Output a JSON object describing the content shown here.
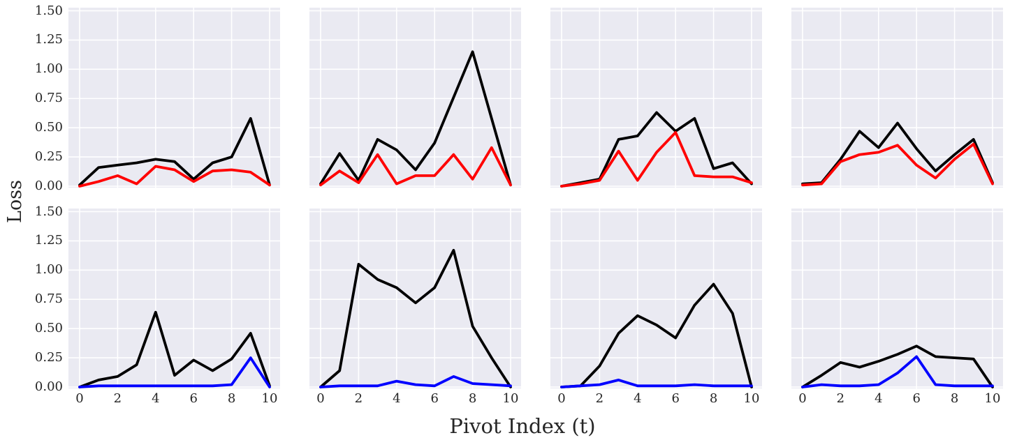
{
  "figure": {
    "background": "#ffffff",
    "axes_background": "#eaeaf2",
    "grid_color": "#ffffff",
    "text_color": "#262626"
  },
  "chart_data": {
    "type": "line",
    "title": "",
    "xlabel": "Pivot Index (t)",
    "ylabel": "Loss",
    "layout": {
      "rows": 2,
      "cols": 4,
      "shared_axes": true,
      "grid": true,
      "legend": "none"
    },
    "x": [
      0,
      1,
      2,
      3,
      4,
      5,
      6,
      7,
      8,
      9,
      10
    ],
    "xticks": [
      0,
      2,
      4,
      6,
      8,
      10
    ],
    "ytick_labels": [
      "0.00",
      "0.25",
      "0.50",
      "0.75",
      "1.00",
      "1.25",
      "1.50"
    ],
    "ytick_values": [
      0,
      0.25,
      0.5,
      0.75,
      1.0,
      1.25,
      1.5
    ],
    "xlim": [
      -0.6,
      10.55
    ],
    "ylim": [
      0,
      1.5
    ],
    "series_colors": {
      "black": "#000000",
      "red": "#ff0000",
      "blue": "#0000ff"
    },
    "subplots": [
      {
        "row": 0,
        "col": 0,
        "series": [
          {
            "name": "black",
            "color": "#000000",
            "values": [
              0.01,
              0.16,
              0.18,
              0.2,
              0.23,
              0.21,
              0.06,
              0.2,
              0.25,
              0.58,
              0.01
            ]
          },
          {
            "name": "red",
            "color": "#ff0000",
            "values": [
              0.0,
              0.04,
              0.09,
              0.02,
              0.17,
              0.14,
              0.04,
              0.13,
              0.14,
              0.12,
              0.01
            ]
          }
        ]
      },
      {
        "row": 0,
        "col": 1,
        "series": [
          {
            "name": "black",
            "color": "#000000",
            "values": [
              0.02,
              0.28,
              0.05,
              0.4,
              0.31,
              0.14,
              0.37,
              0.76,
              1.15,
              0.58,
              0.01
            ]
          },
          {
            "name": "red",
            "color": "#ff0000",
            "values": [
              0.01,
              0.13,
              0.03,
              0.27,
              0.02,
              0.09,
              0.09,
              0.27,
              0.06,
              0.33,
              0.01
            ]
          }
        ]
      },
      {
        "row": 0,
        "col": 2,
        "series": [
          {
            "name": "black",
            "color": "#000000",
            "values": [
              0.0,
              0.03,
              0.06,
              0.4,
              0.43,
              0.63,
              0.47,
              0.58,
              0.15,
              0.2,
              0.02
            ]
          },
          {
            "name": "red",
            "color": "#ff0000",
            "values": [
              0.0,
              0.02,
              0.05,
              0.3,
              0.05,
              0.29,
              0.46,
              0.09,
              0.08,
              0.08,
              0.03
            ]
          }
        ]
      },
      {
        "row": 0,
        "col": 3,
        "series": [
          {
            "name": "black",
            "color": "#000000",
            "values": [
              0.02,
              0.03,
              0.23,
              0.47,
              0.33,
              0.54,
              0.32,
              0.13,
              0.27,
              0.4,
              0.03
            ]
          },
          {
            "name": "red",
            "color": "#ff0000",
            "values": [
              0.01,
              0.02,
              0.21,
              0.27,
              0.29,
              0.35,
              0.18,
              0.07,
              0.23,
              0.36,
              0.02
            ]
          }
        ]
      },
      {
        "row": 1,
        "col": 0,
        "series": [
          {
            "name": "black",
            "color": "#000000",
            "values": [
              0.0,
              0.06,
              0.09,
              0.19,
              0.64,
              0.1,
              0.23,
              0.14,
              0.24,
              0.46,
              0.01
            ]
          },
          {
            "name": "blue",
            "color": "#0000ff",
            "values": [
              0.0,
              0.01,
              0.01,
              0.01,
              0.01,
              0.01,
              0.01,
              0.01,
              0.02,
              0.25,
              0.0
            ]
          }
        ]
      },
      {
        "row": 1,
        "col": 1,
        "series": [
          {
            "name": "black",
            "color": "#000000",
            "values": [
              0.0,
              0.14,
              1.05,
              0.92,
              0.85,
              0.72,
              0.85,
              1.17,
              0.52,
              0.25,
              0.0
            ]
          },
          {
            "name": "blue",
            "color": "#0000ff",
            "values": [
              0.0,
              0.01,
              0.01,
              0.01,
              0.05,
              0.02,
              0.01,
              0.09,
              0.03,
              0.02,
              0.01
            ]
          }
        ]
      },
      {
        "row": 1,
        "col": 2,
        "series": [
          {
            "name": "black",
            "color": "#000000",
            "values": [
              0.0,
              0.01,
              0.18,
              0.46,
              0.61,
              0.53,
              0.42,
              0.7,
              0.88,
              0.63,
              0.0
            ]
          },
          {
            "name": "blue",
            "color": "#0000ff",
            "values": [
              0.0,
              0.01,
              0.02,
              0.06,
              0.01,
              0.01,
              0.01,
              0.02,
              0.01,
              0.01,
              0.01
            ]
          }
        ]
      },
      {
        "row": 1,
        "col": 3,
        "series": [
          {
            "name": "black",
            "color": "#000000",
            "values": [
              0.0,
              0.1,
              0.21,
              0.17,
              0.22,
              0.28,
              0.35,
              0.26,
              0.25,
              0.24,
              0.0
            ]
          },
          {
            "name": "blue",
            "color": "#0000ff",
            "values": [
              0.0,
              0.02,
              0.01,
              0.01,
              0.02,
              0.12,
              0.26,
              0.02,
              0.01,
              0.01,
              0.01
            ]
          }
        ]
      }
    ]
  }
}
